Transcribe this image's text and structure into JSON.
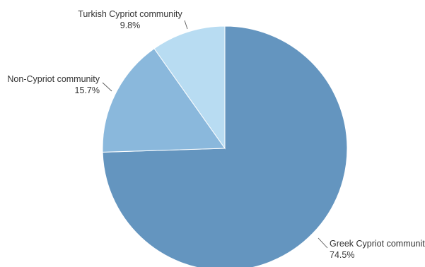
{
  "chart_data": {
    "type": "pie",
    "title": "",
    "slices": [
      {
        "label": "Greek Cypriot community",
        "value": 74.5,
        "value_label": "74.5%",
        "color": "#6495bf"
      },
      {
        "label": "Non-Cypriot community",
        "value": 15.7,
        "value_label": "15.7%",
        "color": "#8ab8dc"
      },
      {
        "label": "Turkish Cypriot community",
        "value": 9.8,
        "value_label": "9.8%",
        "color": "#b8dcf2"
      }
    ],
    "start_angle": "12 o'clock",
    "direction": "clockwise",
    "legend": "none",
    "labels": "outside with leader lines"
  }
}
